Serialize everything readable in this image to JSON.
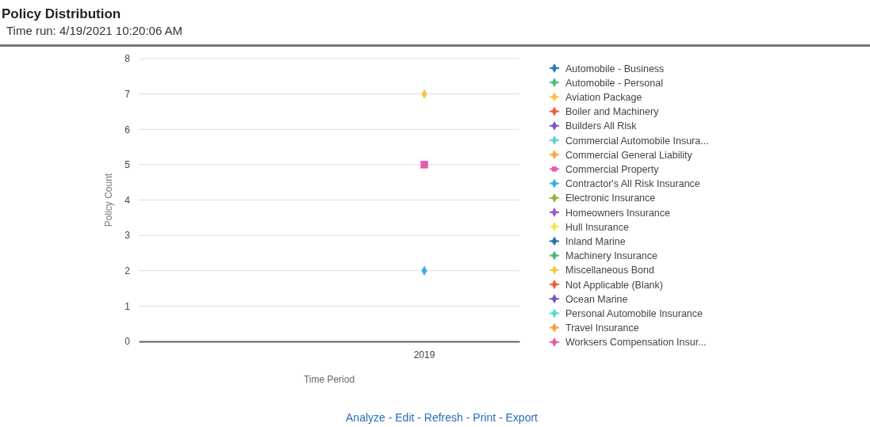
{
  "chart_data": {
    "type": "line",
    "title": "Policy Distribution",
    "subtitle": "Time run: 4/19/2021 10:20:06 AM",
    "xlabel": "Time Period",
    "ylabel": "Policy Count",
    "categories": [
      null,
      "2019"
    ],
    "ylim": [
      0,
      8
    ],
    "yticks": [
      0,
      1,
      2,
      3,
      4,
      5,
      6,
      7,
      8
    ],
    "grid": "y",
    "legend": "right",
    "marker": "diamond",
    "series": [
      {
        "name": "Automobile - Business",
        "color": "#2b7bba",
        "values": [
          null,
          null
        ]
      },
      {
        "name": "Automobile - Personal",
        "color": "#4cbf7a",
        "values": [
          null,
          null
        ]
      },
      {
        "name": "Aviation Package",
        "color": "#f6c342",
        "values": [
          null,
          7
        ]
      },
      {
        "name": "Boiler and Machinery",
        "color": "#f05a4a",
        "values": [
          null,
          null
        ]
      },
      {
        "name": "Builders All Risk",
        "color": "#7e57c2",
        "values": [
          null,
          null
        ]
      },
      {
        "name": "Commercial Automobile Insura...",
        "color": "#5fd4d4",
        "values": [
          null,
          null
        ]
      },
      {
        "name": "Commercial General Liability",
        "color": "#ffa23a",
        "values": [
          null,
          null
        ]
      },
      {
        "name": "Commercial Property",
        "color": "#e85ab0",
        "values": [
          null,
          5
        ],
        "marker": "square"
      },
      {
        "name": "Contractor's All Risk Insurance",
        "color": "#3aaee8",
        "values": [
          null,
          2
        ]
      },
      {
        "name": "Electronic Insurance",
        "color": "#8cb83a",
        "values": [
          null,
          null
        ]
      },
      {
        "name": "Homeowners Insurance",
        "color": "#9b59c6",
        "values": [
          null,
          null
        ]
      },
      {
        "name": "Hull Insurance",
        "color": "#f5e85a",
        "values": [
          null,
          null
        ]
      },
      {
        "name": "Inland Marine",
        "color": "#2b6fa8",
        "values": [
          null,
          null
        ]
      },
      {
        "name": "Machinery Insurance",
        "color": "#4cb87a",
        "values": [
          null,
          null
        ]
      },
      {
        "name": "Miscellaneous Bond",
        "color": "#f6c842",
        "values": [
          null,
          null
        ]
      },
      {
        "name": "Not Applicable (Blank)",
        "color": "#f05a3a",
        "values": [
          null,
          null
        ]
      },
      {
        "name": "Ocean Marine",
        "color": "#7e4fd2",
        "values": [
          null,
          null
        ]
      },
      {
        "name": "Personal Automobile Insurance",
        "color": "#5fd8d0",
        "values": [
          null,
          null
        ]
      },
      {
        "name": "Travel Insurance",
        "color": "#ffa030",
        "values": [
          null,
          null
        ]
      },
      {
        "name": "Worksers Compensation Insur...",
        "color": "#e85aa8",
        "values": [
          null,
          null
        ]
      }
    ],
    "annotations": [
      "Analyze - Edit - Refresh - Print - Export"
    ]
  }
}
